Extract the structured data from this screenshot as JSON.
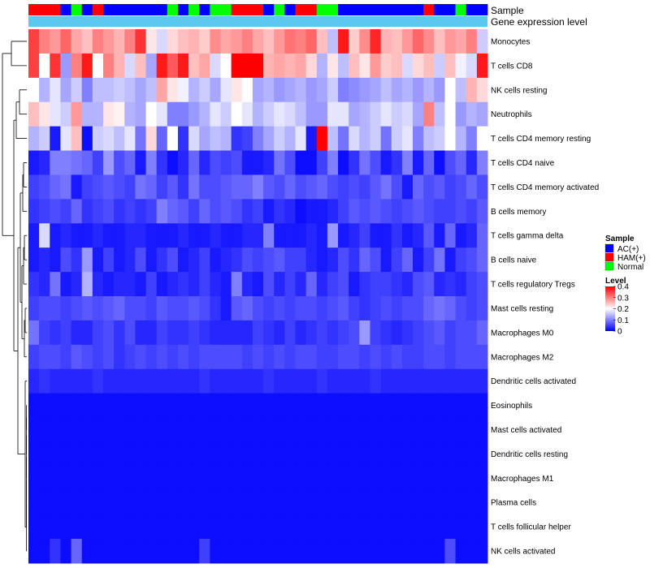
{
  "chart_data": {
    "type": "heatmap",
    "title": "",
    "annotation_labels": {
      "sample": "Sample",
      "expression": "Gene expression level"
    },
    "samples_legend": {
      "title": "Sample",
      "groups": [
        {
          "name": "AC(+)",
          "color": "#0000ff"
        },
        {
          "name": "HAM(+)",
          "color": "#ff0000"
        },
        {
          "name": "Normal",
          "color": "#00ff00"
        }
      ]
    },
    "level_legend": {
      "title": "Level",
      "ticks": [
        "0.4",
        "0.3",
        "0.2",
        "0.1",
        "0"
      ],
      "range": [
        0,
        0.4
      ],
      "colors": [
        "#0000ff",
        "#ffffff",
        "#ff0000"
      ]
    },
    "column_groups": [
      "HAM(+)",
      "HAM(+)",
      "HAM(+)",
      "AC(+)",
      "Normal",
      "AC(+)",
      "HAM(+)",
      "AC(+)",
      "AC(+)",
      "AC(+)",
      "AC(+)",
      "AC(+)",
      "AC(+)",
      "Normal",
      "AC(+)",
      "Normal",
      "AC(+)",
      "Normal",
      "Normal",
      "HAM(+)",
      "HAM(+)",
      "HAM(+)",
      "AC(+)",
      "Normal",
      "AC(+)",
      "HAM(+)",
      "HAM(+)",
      "Normal",
      "Normal",
      "AC(+)",
      "AC(+)",
      "AC(+)",
      "AC(+)",
      "AC(+)",
      "AC(+)",
      "AC(+)",
      "AC(+)",
      "HAM(+)",
      "AC(+)",
      "AC(+)",
      "Normal",
      "AC(+)",
      "AC(+)"
    ],
    "row_labels": [
      "Monocytes",
      "T cells CD8",
      "NK cells resting",
      "Neutrophils",
      "T cells CD4 memory resting",
      "T cells CD4 naive",
      "T cells CD4 memory activated",
      "B cells memory",
      "T cells gamma delta",
      "B cells naive",
      "T cells regulatory  Tregs",
      "Mast cells resting",
      "Macrophages M0",
      "Macrophages M2",
      "Dendritic cells activated",
      "Eosinophils",
      "Mast cells activated",
      "Dendritic cells resting",
      "Macrophages M1",
      "Plasma cells",
      "T cells follicular helper",
      "NK cells activated"
    ],
    "values": [
      [
        0.35,
        0.3,
        0.28,
        0.32,
        0.27,
        0.25,
        0.3,
        0.28,
        0.26,
        0.3,
        0.36,
        0.22,
        0.17,
        0.23,
        0.25,
        0.26,
        0.24,
        0.29,
        0.27,
        0.28,
        0.3,
        0.27,
        0.25,
        0.28,
        0.31,
        0.3,
        0.32,
        0.25,
        0.15,
        0.38,
        0.24,
        0.29,
        0.37,
        0.26,
        0.25,
        0.28,
        0.32,
        0.29,
        0.25,
        0.28,
        0.27,
        0.3,
        0.16
      ],
      [
        0.35,
        0.2,
        0.36,
        0.12,
        0.3,
        0.38,
        0.2,
        0.3,
        0.26,
        0.17,
        0.25,
        0.13,
        0.38,
        0.33,
        0.38,
        0.25,
        0.27,
        0.17,
        0.2,
        0.4,
        0.4,
        0.4,
        0.26,
        0.27,
        0.26,
        0.27,
        0.23,
        0.14,
        0.22,
        0.15,
        0.25,
        0.22,
        0.28,
        0.24,
        0.25,
        0.17,
        0.23,
        0.25,
        0.16,
        0.25,
        0.19,
        0.17,
        0.38
      ],
      [
        0.2,
        0.14,
        0.18,
        0.13,
        0.16,
        0.1,
        0.15,
        0.15,
        0.16,
        0.15,
        0.13,
        0.15,
        0.27,
        0.22,
        0.19,
        0.14,
        0.16,
        0.13,
        0.18,
        0.22,
        0.2,
        0.13,
        0.14,
        0.12,
        0.13,
        0.14,
        0.12,
        0.13,
        0.16,
        0.1,
        0.11,
        0.12,
        0.13,
        0.15,
        0.13,
        0.14,
        0.12,
        0.14,
        0.12,
        0.2,
        0.15,
        0.26,
        0.23
      ],
      [
        0.25,
        0.22,
        0.18,
        0.16,
        0.28,
        0.14,
        0.14,
        0.22,
        0.21,
        0.14,
        0.13,
        0.2,
        0.18,
        0.1,
        0.1,
        0.12,
        0.14,
        0.18,
        0.16,
        0.2,
        0.18,
        0.14,
        0.16,
        0.18,
        0.17,
        0.15,
        0.12,
        0.12,
        0.18,
        0.18,
        0.13,
        0.14,
        0.16,
        0.18,
        0.16,
        0.17,
        0.13,
        0.3,
        0.15,
        0.2,
        0.12,
        0.14,
        0.13
      ],
      [
        0.14,
        0.16,
        0.02,
        0.18,
        0.25,
        0.01,
        0.16,
        0.17,
        0.15,
        0.18,
        0.09,
        0.23,
        0.08,
        0.2,
        0.04,
        0.17,
        0.13,
        0.15,
        0.14,
        0.04,
        0.05,
        0.1,
        0.13,
        0.16,
        0.14,
        0.18,
        0.02,
        0.4,
        0.15,
        0.09,
        0.17,
        0.14,
        0.16,
        0.09,
        0.16,
        0.18,
        0.1,
        0.15,
        0.16,
        0.2,
        0.14,
        0.1,
        0.2
      ],
      [
        0.02,
        0.03,
        0.1,
        0.1,
        0.09,
        0.08,
        0.05,
        0.12,
        0.06,
        0.08,
        0.02,
        0.1,
        0.04,
        0.01,
        0.03,
        0.08,
        0.03,
        0.06,
        0.05,
        0.06,
        0.02,
        0.02,
        0.03,
        0.09,
        0.06,
        0.01,
        0.01,
        0.05,
        0.1,
        0.01,
        0.04,
        0.09,
        0.06,
        0.02,
        0.04,
        0.1,
        0.02,
        0.08,
        0.01,
        0.06,
        0.08,
        0.03,
        0.1
      ],
      [
        0.05,
        0.06,
        0.08,
        0.09,
        0.02,
        0.05,
        0.06,
        0.07,
        0.06,
        0.05,
        0.09,
        0.08,
        0.05,
        0.07,
        0.04,
        0.09,
        0.06,
        0.06,
        0.07,
        0.08,
        0.08,
        0.1,
        0.07,
        0.06,
        0.08,
        0.06,
        0.07,
        0.08,
        0.06,
        0.05,
        0.06,
        0.05,
        0.07,
        0.09,
        0.06,
        0.02,
        0.08,
        0.06,
        0.07,
        0.05,
        0.06,
        0.08,
        0.06
      ],
      [
        0.04,
        0.05,
        0.06,
        0.05,
        0.08,
        0.04,
        0.05,
        0.06,
        0.04,
        0.05,
        0.04,
        0.05,
        0.1,
        0.08,
        0.07,
        0.05,
        0.08,
        0.06,
        0.07,
        0.06,
        0.04,
        0.05,
        0.02,
        0.04,
        0.03,
        0.01,
        0.02,
        0.02,
        0.03,
        0.05,
        0.07,
        0.06,
        0.07,
        0.06,
        0.05,
        0.06,
        0.07,
        0.06,
        0.05,
        0.05,
        0.06,
        0.05,
        0.07
      ],
      [
        0.02,
        0.17,
        0.02,
        0.03,
        0.02,
        0.02,
        0.03,
        0.02,
        0.02,
        0.03,
        0.03,
        0.02,
        0.02,
        0.02,
        0.03,
        0.02,
        0.02,
        0.03,
        0.02,
        0.02,
        0.03,
        0.03,
        0.1,
        0.02,
        0.02,
        0.02,
        0.03,
        0.02,
        0.12,
        0.02,
        0.03,
        0.05,
        0.02,
        0.02,
        0.04,
        0.02,
        0.03,
        0.07,
        0.02,
        0.08,
        0.02,
        0.03,
        0.08
      ],
      [
        0.02,
        0.03,
        0.02,
        0.06,
        0.04,
        0.12,
        0.02,
        0.05,
        0.02,
        0.03,
        0.06,
        0.02,
        0.04,
        0.06,
        0.02,
        0.03,
        0.05,
        0.02,
        0.03,
        0.04,
        0.06,
        0.05,
        0.06,
        0.07,
        0.05,
        0.05,
        0.03,
        0.02,
        0.03,
        0.06,
        0.04,
        0.08,
        0.06,
        0.02,
        0.05,
        0.08,
        0.02,
        0.05,
        0.09,
        0.02,
        0.05,
        0.06,
        0.08
      ],
      [
        0.04,
        0.03,
        0.09,
        0.02,
        0.03,
        0.14,
        0.03,
        0.02,
        0.03,
        0.03,
        0.02,
        0.05,
        0.02,
        0.03,
        0.04,
        0.03,
        0.05,
        0.03,
        0.02,
        0.1,
        0.03,
        0.02,
        0.06,
        0.03,
        0.05,
        0.03,
        0.08,
        0.03,
        0.05,
        0.06,
        0.02,
        0.04,
        0.05,
        0.05,
        0.04,
        0.03,
        0.06,
        0.07,
        0.03,
        0.04,
        0.03,
        0.05,
        0.06
      ],
      [
        0.05,
        0.06,
        0.06,
        0.05,
        0.06,
        0.07,
        0.06,
        0.07,
        0.08,
        0.06,
        0.06,
        0.05,
        0.07,
        0.06,
        0.06,
        0.07,
        0.06,
        0.04,
        0.02,
        0.07,
        0.08,
        0.06,
        0.05,
        0.06,
        0.05,
        0.06,
        0.06,
        0.05,
        0.06,
        0.07,
        0.05,
        0.04,
        0.05,
        0.06,
        0.05,
        0.06,
        0.06,
        0.08,
        0.09,
        0.08,
        0.06,
        0.05,
        0.06
      ],
      [
        0.09,
        0.05,
        0.04,
        0.05,
        0.03,
        0.03,
        0.05,
        0.06,
        0.04,
        0.06,
        0.03,
        0.03,
        0.05,
        0.04,
        0.04,
        0.05,
        0.04,
        0.03,
        0.03,
        0.03,
        0.03,
        0.05,
        0.04,
        0.03,
        0.05,
        0.03,
        0.04,
        0.05,
        0.04,
        0.05,
        0.06,
        0.12,
        0.05,
        0.04,
        0.03,
        0.04,
        0.05,
        0.06,
        0.07,
        0.05,
        0.06,
        0.06,
        0.08
      ],
      [
        0.05,
        0.06,
        0.06,
        0.05,
        0.07,
        0.06,
        0.05,
        0.06,
        0.04,
        0.05,
        0.06,
        0.05,
        0.06,
        0.05,
        0.06,
        0.05,
        0.06,
        0.06,
        0.06,
        0.06,
        0.05,
        0.06,
        0.05,
        0.06,
        0.05,
        0.06,
        0.06,
        0.05,
        0.05,
        0.06,
        0.06,
        0.05,
        0.06,
        0.05,
        0.06,
        0.05,
        0.05,
        0.06,
        0.06,
        0.05,
        0.06,
        0.06,
        0.06
      ],
      [
        0.03,
        0.04,
        0.03,
        0.03,
        0.03,
        0.03,
        0.04,
        0.03,
        0.03,
        0.03,
        0.03,
        0.03,
        0.03,
        0.03,
        0.03,
        0.03,
        0.04,
        0.03,
        0.03,
        0.03,
        0.03,
        0.03,
        0.04,
        0.03,
        0.03,
        0.03,
        0.03,
        0.04,
        0.03,
        0.03,
        0.03,
        0.03,
        0.04,
        0.03,
        0.03,
        0.03,
        0.03,
        0.03,
        0.03,
        0.03,
        0.03,
        0.03,
        0.03
      ],
      [
        0.01,
        0.01,
        0.01,
        0.01,
        0.01,
        0.01,
        0.01,
        0.01,
        0.01,
        0.01,
        0.01,
        0.01,
        0.01,
        0.01,
        0.01,
        0.01,
        0.01,
        0.01,
        0.01,
        0.01,
        0.01,
        0.01,
        0.01,
        0.01,
        0.01,
        0.01,
        0.01,
        0.01,
        0.01,
        0.01,
        0.01,
        0.01,
        0.01,
        0.01,
        0.01,
        0.01,
        0.01,
        0.01,
        0.01,
        0.01,
        0.01,
        0.01,
        0.01
      ],
      [
        0.01,
        0.01,
        0.01,
        0.01,
        0.01,
        0.01,
        0.01,
        0.01,
        0.01,
        0.01,
        0.01,
        0.01,
        0.01,
        0.01,
        0.01,
        0.01,
        0.01,
        0.01,
        0.01,
        0.01,
        0.01,
        0.01,
        0.01,
        0.01,
        0.01,
        0.01,
        0.01,
        0.01,
        0.01,
        0.01,
        0.01,
        0.01,
        0.01,
        0.01,
        0.01,
        0.01,
        0.01,
        0.01,
        0.01,
        0.01,
        0.01,
        0.01,
        0.01
      ],
      [
        0.01,
        0.01,
        0.01,
        0.01,
        0.01,
        0.01,
        0.01,
        0.01,
        0.01,
        0.01,
        0.01,
        0.01,
        0.01,
        0.01,
        0.01,
        0.01,
        0.01,
        0.01,
        0.01,
        0.01,
        0.01,
        0.01,
        0.01,
        0.01,
        0.01,
        0.01,
        0.01,
        0.01,
        0.01,
        0.01,
        0.01,
        0.01,
        0.01,
        0.01,
        0.01,
        0.01,
        0.01,
        0.01,
        0.01,
        0.01,
        0.01,
        0.01,
        0.01
      ],
      [
        0.01,
        0.01,
        0.01,
        0.01,
        0.01,
        0.01,
        0.01,
        0.01,
        0.01,
        0.01,
        0.01,
        0.01,
        0.01,
        0.01,
        0.01,
        0.01,
        0.01,
        0.01,
        0.01,
        0.01,
        0.01,
        0.01,
        0.01,
        0.01,
        0.01,
        0.01,
        0.01,
        0.01,
        0.01,
        0.01,
        0.01,
        0.01,
        0.01,
        0.01,
        0.01,
        0.01,
        0.01,
        0.01,
        0.01,
        0.01,
        0.01,
        0.01,
        0.01
      ],
      [
        0.01,
        0.01,
        0.01,
        0.01,
        0.01,
        0.01,
        0.01,
        0.01,
        0.01,
        0.01,
        0.01,
        0.01,
        0.01,
        0.01,
        0.01,
        0.01,
        0.01,
        0.01,
        0.01,
        0.01,
        0.01,
        0.01,
        0.01,
        0.01,
        0.01,
        0.01,
        0.01,
        0.01,
        0.01,
        0.01,
        0.01,
        0.01,
        0.01,
        0.01,
        0.01,
        0.01,
        0.01,
        0.01,
        0.01,
        0.01,
        0.01,
        0.01,
        0.01
      ],
      [
        0.01,
        0.01,
        0.01,
        0.01,
        0.01,
        0.01,
        0.01,
        0.01,
        0.01,
        0.01,
        0.01,
        0.01,
        0.01,
        0.01,
        0.01,
        0.01,
        0.01,
        0.01,
        0.01,
        0.01,
        0.01,
        0.01,
        0.01,
        0.01,
        0.01,
        0.01,
        0.01,
        0.01,
        0.01,
        0.01,
        0.01,
        0.01,
        0.01,
        0.01,
        0.01,
        0.01,
        0.01,
        0.01,
        0.01,
        0.01,
        0.01,
        0.01,
        0.01
      ],
      [
        0.01,
        0.01,
        0.04,
        0.01,
        0.08,
        0.01,
        0.01,
        0.01,
        0.01,
        0.01,
        0.01,
        0.01,
        0.01,
        0.01,
        0.01,
        0.01,
        0.05,
        0.01,
        0.01,
        0.01,
        0.01,
        0.01,
        0.01,
        0.01,
        0.01,
        0.01,
        0.01,
        0.01,
        0.01,
        0.01,
        0.01,
        0.01,
        0.01,
        0.01,
        0.01,
        0.01,
        0.01,
        0.01,
        0.01,
        0.06,
        0.01,
        0.01,
        0.01
      ]
    ]
  }
}
